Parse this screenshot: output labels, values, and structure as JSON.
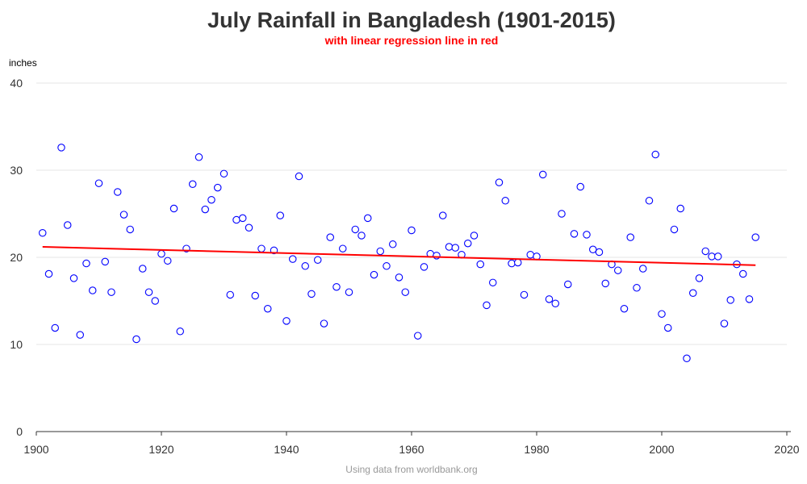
{
  "chart_data": {
    "type": "scatter",
    "title": "July Rainfall in Bangladesh (1901-2015)",
    "subtitle": "with linear regression line in red",
    "xlabel": "",
    "ylabel": "inches",
    "footnote": "Using data from worldbank.org",
    "xlim": [
      1900,
      2020
    ],
    "ylim": [
      0,
      40
    ],
    "xticks": [
      1900,
      1920,
      1940,
      1960,
      1980,
      2000,
      2020
    ],
    "yticks": [
      0,
      10,
      20,
      30,
      40
    ],
    "grid": true,
    "point_color": "#0000ff",
    "line_color": "#ff0000",
    "series": [
      {
        "name": "July rainfall",
        "x": [
          1901,
          1902,
          1903,
          1904,
          1905,
          1906,
          1907,
          1908,
          1909,
          1910,
          1911,
          1912,
          1913,
          1914,
          1915,
          1916,
          1917,
          1918,
          1919,
          1920,
          1921,
          1922,
          1923,
          1924,
          1925,
          1926,
          1927,
          1928,
          1929,
          1930,
          1931,
          1932,
          1933,
          1934,
          1935,
          1936,
          1937,
          1938,
          1939,
          1940,
          1941,
          1942,
          1943,
          1944,
          1945,
          1946,
          1947,
          1948,
          1949,
          1950,
          1951,
          1952,
          1953,
          1954,
          1955,
          1956,
          1957,
          1958,
          1959,
          1960,
          1961,
          1962,
          1963,
          1964,
          1965,
          1966,
          1967,
          1968,
          1969,
          1970,
          1971,
          1972,
          1973,
          1974,
          1975,
          1976,
          1977,
          1978,
          1979,
          1980,
          1981,
          1982,
          1983,
          1984,
          1985,
          1986,
          1987,
          1988,
          1989,
          1990,
          1991,
          1992,
          1993,
          1994,
          1995,
          1996,
          1997,
          1998,
          1999,
          2000,
          2001,
          2002,
          2003,
          2004,
          2005,
          2006,
          2007,
          2008,
          2009,
          2010,
          2011,
          2012,
          2013,
          2014,
          2015
        ],
        "y": [
          22.8,
          18.1,
          11.9,
          32.6,
          23.7,
          17.6,
          11.1,
          19.3,
          16.2,
          28.5,
          19.5,
          16.0,
          27.5,
          24.9,
          23.2,
          10.6,
          18.7,
          16.0,
          15.0,
          20.4,
          19.6,
          25.6,
          11.5,
          21.0,
          28.4,
          31.5,
          25.5,
          26.6,
          28.0,
          29.6,
          15.7,
          24.3,
          24.5,
          23.4,
          15.6,
          21.0,
          14.1,
          20.8,
          24.8,
          12.7,
          19.8,
          29.3,
          19.0,
          15.8,
          19.7,
          12.4,
          22.3,
          16.6,
          21.0,
          16.0,
          23.2,
          22.5,
          24.5,
          18.0,
          20.7,
          19.0,
          21.5,
          17.7,
          16.0,
          23.1,
          11.0,
          18.9,
          20.4,
          20.2,
          24.8,
          21.2,
          21.1,
          20.3,
          21.6,
          22.5,
          19.2,
          14.5,
          17.1,
          28.6,
          26.5,
          19.3,
          19.4,
          15.7,
          20.3,
          20.1,
          29.5,
          15.2,
          14.7,
          25.0,
          16.9,
          22.7,
          28.1,
          22.6,
          20.9,
          20.6,
          17.0,
          19.2,
          18.5,
          14.1,
          22.3,
          16.5,
          18.7,
          26.5,
          31.8,
          13.5,
          11.9,
          23.2,
          25.6,
          8.4,
          15.9,
          17.6,
          20.7,
          20.1,
          20.1,
          12.4,
          15.1,
          19.2,
          18.1,
          15.2,
          22.3
        ]
      }
    ],
    "regression": {
      "x": [
        1901,
        2015
      ],
      "y": [
        21.2,
        19.1
      ]
    }
  }
}
